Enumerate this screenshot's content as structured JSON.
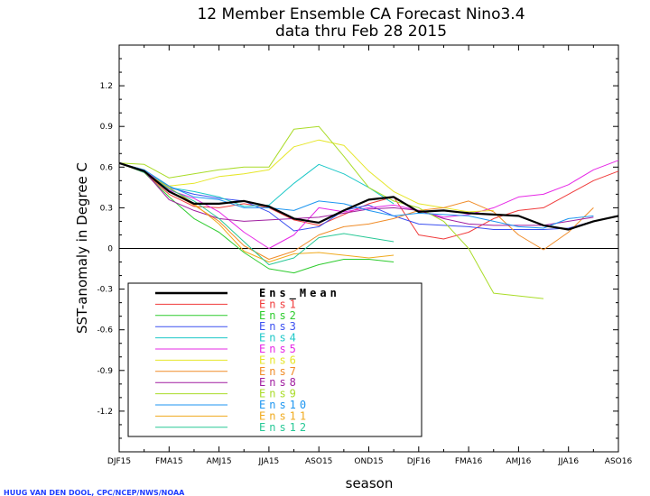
{
  "chart_data": {
    "type": "line",
    "title": "12 Member Ensemble CA Forecast Nino3.4",
    "subtitle": "data thru Feb 28 2015",
    "xlabel": "season",
    "ylabel": "SST-anomaly in Degree C",
    "credit": "HUUG VAN DEN DOOL, CPC/NCEP/NWS/NOAA",
    "ylim": [
      -1.5,
      1.5
    ],
    "yticks": [
      "1.2",
      "0.9",
      "0.6",
      "0.3",
      "0",
      "-0.3",
      "-0.6",
      "-0.9",
      "-1.2"
    ],
    "ytick_values": [
      1.2,
      0.9,
      0.6,
      0.3,
      0,
      -0.3,
      -0.6,
      -0.9,
      -1.2
    ],
    "x_tick_labels": [
      "DJF15",
      "FMA15",
      "AMJ15",
      "JJA15",
      "ASO15",
      "OND15",
      "DJF16",
      "FMA16",
      "AMJ16",
      "JJA16",
      "ASO16"
    ],
    "x_tick_index": [
      0,
      2,
      4,
      6,
      8,
      10,
      12,
      14,
      16,
      18,
      20
    ],
    "n_points": 21,
    "zero_line": true,
    "legend_position": "lower-left",
    "series": [
      {
        "name": "Ens_Mean",
        "color": "#000000",
        "width": 2.2,
        "values": [
          0.63,
          0.57,
          0.42,
          0.33,
          0.33,
          0.35,
          0.31,
          0.22,
          0.19,
          0.28,
          0.36,
          0.38,
          0.27,
          0.28,
          0.26,
          0.25,
          0.24,
          0.17,
          0.14,
          0.2,
          0.24
        ]
      },
      {
        "name": "Ens1",
        "color": "#f03c3c",
        "width": 1,
        "values": [
          0.63,
          0.56,
          0.4,
          0.31,
          0.3,
          0.33,
          0.3,
          0.21,
          0.17,
          0.25,
          0.33,
          0.38,
          0.1,
          0.07,
          0.12,
          0.22,
          0.28,
          0.3,
          0.4,
          0.5,
          0.57
        ]
      },
      {
        "name": "Ens2",
        "color": "#2ecc2e",
        "width": 1,
        "values": [
          0.63,
          0.56,
          0.38,
          0.22,
          0.12,
          -0.03,
          -0.15,
          -0.18,
          -0.12,
          -0.08,
          -0.08,
          -0.1
        ]
      },
      {
        "name": "Ens3",
        "color": "#3c50f0",
        "width": 1,
        "values": [
          0.63,
          0.58,
          0.45,
          0.4,
          0.37,
          0.35,
          0.27,
          0.13,
          0.16,
          0.28,
          0.32,
          0.24,
          0.18,
          0.17,
          0.16,
          0.14,
          0.14,
          0.14,
          0.15,
          0.2,
          0.24
        ]
      },
      {
        "name": "Ens4",
        "color": "#1ec8c8",
        "width": 1,
        "values": [
          0.63,
          0.58,
          0.45,
          0.42,
          0.38,
          0.31,
          0.32,
          0.48,
          0.62,
          0.55,
          0.45,
          0.33
        ]
      },
      {
        "name": "Ens5",
        "color": "#e628e6",
        "width": 1,
        "values": [
          0.63,
          0.58,
          0.43,
          0.37,
          0.27,
          0.12,
          0.0,
          0.1,
          0.3,
          0.27,
          0.3,
          0.32,
          0.28,
          0.23,
          0.25,
          0.3,
          0.38,
          0.4,
          0.47,
          0.58,
          0.65
        ]
      },
      {
        "name": "Ens6",
        "color": "#e6e628",
        "width": 1,
        "values": [
          0.63,
          0.58,
          0.46,
          0.48,
          0.53,
          0.55,
          0.58,
          0.75,
          0.8,
          0.76,
          0.57,
          0.42,
          0.33,
          0.3,
          0.27,
          0.28
        ]
      },
      {
        "name": "Ens7",
        "color": "#f08c28",
        "width": 1,
        "values": [
          0.63,
          0.56,
          0.42,
          0.32,
          0.2,
          0.02,
          -0.08,
          -0.02,
          0.1,
          0.16,
          0.18,
          0.22,
          0.28,
          0.3,
          0.35,
          0.27,
          0.1,
          -0.01,
          0.12,
          0.3
        ]
      },
      {
        "name": "Ens8",
        "color": "#a01ea0",
        "width": 1,
        "values": [
          0.63,
          0.57,
          0.36,
          0.28,
          0.22,
          0.2,
          0.21,
          0.22,
          0.23,
          0.26,
          0.29,
          0.3,
          0.28,
          0.22,
          0.18,
          0.17,
          0.17,
          0.17,
          0.2,
          0.23
        ]
      },
      {
        "name": "Ens9",
        "color": "#aadc28",
        "width": 1,
        "values": [
          0.63,
          0.62,
          0.52,
          0.55,
          0.58,
          0.6,
          0.6,
          0.88,
          0.9,
          0.68,
          0.45,
          0.35,
          0.3,
          0.2,
          0.0,
          -0.33,
          -0.35,
          -0.37
        ]
      },
      {
        "name": "Ens10",
        "color": "#1e96f0",
        "width": 1,
        "values": [
          0.63,
          0.58,
          0.46,
          0.38,
          0.36,
          0.3,
          0.3,
          0.28,
          0.35,
          0.33,
          0.28,
          0.24,
          0.26,
          0.25,
          0.24,
          0.2,
          0.16,
          0.15,
          0.22,
          0.24
        ]
      },
      {
        "name": "Ens11",
        "color": "#f0aa1e",
        "width": 1,
        "values": [
          0.63,
          0.56,
          0.45,
          0.33,
          0.18,
          -0.02,
          -0.1,
          -0.04,
          -0.03,
          -0.05,
          -0.07,
          -0.05
        ]
      },
      {
        "name": "Ens12",
        "color": "#28c896",
        "width": 1,
        "values": [
          0.63,
          0.56,
          0.44,
          0.35,
          0.22,
          0.05,
          -0.12,
          -0.07,
          0.08,
          0.11,
          0.08,
          0.05
        ]
      }
    ]
  }
}
